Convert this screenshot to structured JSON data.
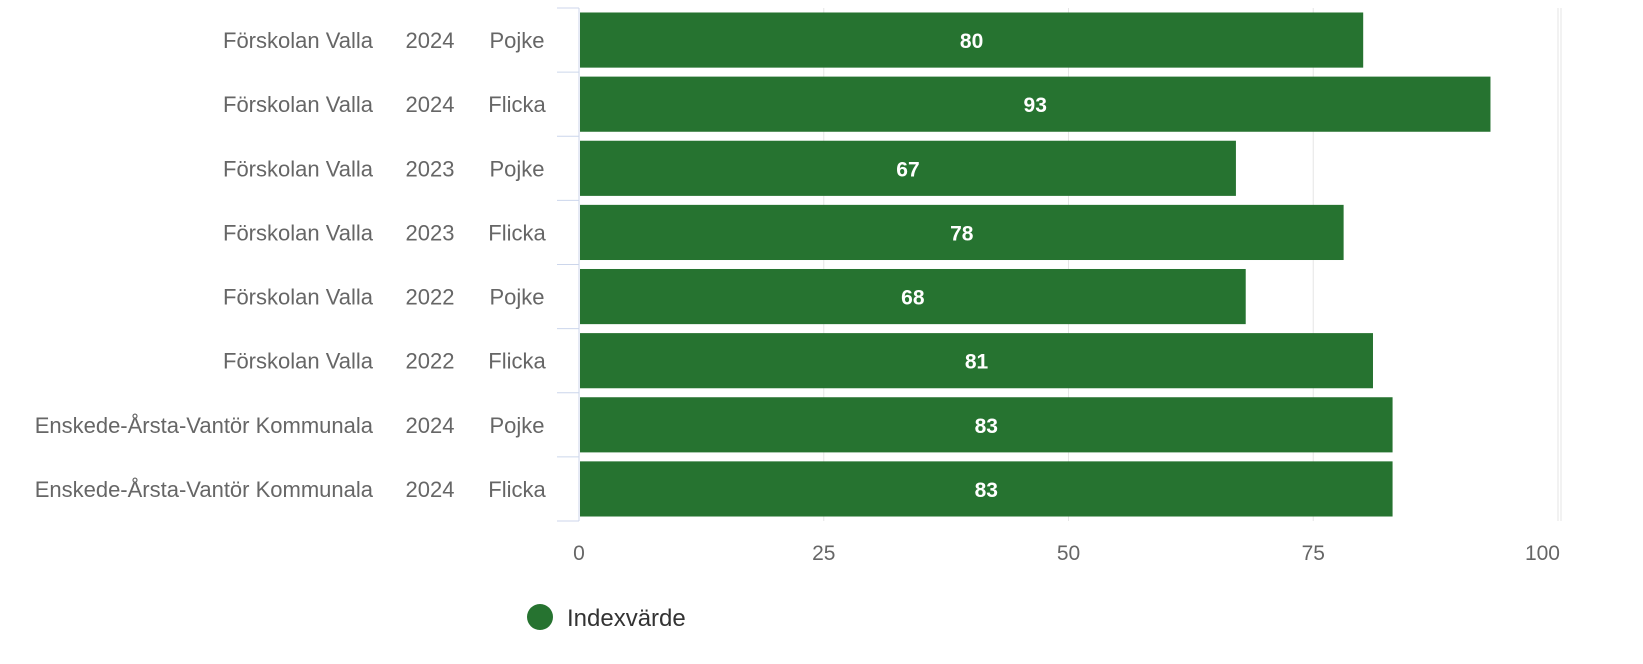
{
  "chart_data": {
    "type": "bar",
    "orientation": "horizontal",
    "categories": [
      [
        "Förskolan Valla",
        "2024",
        "Pojke"
      ],
      [
        "Förskolan Valla",
        "2024",
        "Flicka"
      ],
      [
        "Förskolan Valla",
        "2023",
        "Pojke"
      ],
      [
        "Förskolan Valla",
        "2023",
        "Flicka"
      ],
      [
        "Förskolan Valla",
        "2022",
        "Pojke"
      ],
      [
        "Förskolan Valla",
        "2022",
        "Flicka"
      ],
      [
        "Enskede-Årsta-Vantör Kommunala",
        "2024",
        "Pojke"
      ],
      [
        "Enskede-Årsta-Vantör Kommunala",
        "2024",
        "Flicka"
      ]
    ],
    "series": [
      {
        "name": "Indexvärde",
        "color": "#267330",
        "values": [
          80,
          93,
          67,
          78,
          68,
          81,
          83,
          83
        ],
        "data_labels": [
          "80",
          "93",
          "67",
          "78",
          "68",
          "81",
          "83",
          "83"
        ]
      }
    ],
    "xlim": [
      0,
      100
    ],
    "x_ticks": [
      0,
      25,
      50,
      75,
      100
    ],
    "x_tick_labels": [
      "0",
      "25",
      "50",
      "75",
      "100"
    ],
    "grid": true,
    "legend": {
      "position": "bottom-center",
      "items": [
        "Indexvärde"
      ]
    },
    "title": "",
    "xlabel": "",
    "ylabel": ""
  }
}
